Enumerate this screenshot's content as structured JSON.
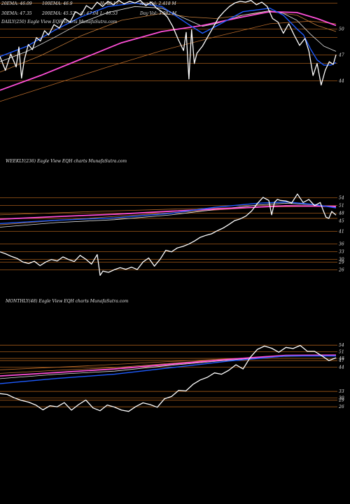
{
  "colors": {
    "background": "#000000",
    "price": "#ffffff",
    "ema20": "#1e5bff",
    "ema30": "#e8e8e8",
    "ema50": "#c47c3a",
    "ema100": "#ff4fd8",
    "ema200": "#b86a2a",
    "level_line": "#c06a1c",
    "text": "#e6e6e6"
  },
  "chart_data": [
    {
      "type": "line",
      "panel": "daily",
      "title": "DAILY(250) Eagle  View  EQH charts MunafaSutra.com",
      "info": {
        "row1": [
          "20EMA: 46.09",
          "100EMA: 46.9",
          "",
          "H: 48.17",
          "Avg Vol: 2.418 M"
        ],
        "row2": [
          "30EMA: 47.35",
          "200EMA: 45.52",
          "C: 47.04",
          "L: 46.53",
          "Day Vol: 3.982 M"
        ]
      },
      "ylim": [
        42,
        54
      ],
      "x": [
        0,
        249
      ],
      "ticks": [
        50,
        47,
        44
      ],
      "levels": [
        53,
        50,
        49,
        47,
        46,
        44
      ],
      "series": [
        {
          "key": "price",
          "x": [
            0,
            4,
            8,
            12,
            14,
            16,
            18,
            21,
            24,
            27,
            30,
            33,
            36,
            40,
            44,
            48,
            52,
            56,
            60,
            64,
            68,
            72,
            76,
            80,
            84,
            88,
            92,
            96,
            100,
            104,
            108,
            112,
            116,
            120,
            124,
            128,
            132,
            136,
            138,
            140,
            142,
            144,
            146,
            148,
            150,
            154,
            158,
            162,
            166,
            170,
            174,
            178,
            182,
            186,
            190,
            194,
            198,
            202,
            206,
            210,
            214,
            218,
            222,
            226,
            229,
            232,
            235,
            238,
            241,
            244,
            247,
            249
          ],
          "y": [
            46.8,
            45.2,
            47.1,
            45.6,
            47.9,
            44.3,
            46.4,
            48.2,
            47.6,
            49.0,
            48.6,
            49.8,
            49.3,
            50.5,
            50.1,
            51.2,
            50.8,
            52.0,
            51.6,
            52.7,
            52.3,
            53.1,
            52.6,
            53.2,
            52.8,
            53.3,
            52.9,
            53.2,
            53.0,
            53.3,
            52.7,
            53.1,
            52.4,
            52.0,
            51.4,
            50.3,
            48.8,
            47.5,
            49.6,
            44.2,
            49.9,
            46.0,
            47.2,
            47.6,
            48.0,
            49.1,
            50.2,
            51.3,
            52.0,
            52.6,
            53.0,
            53.2,
            53.1,
            53.3,
            52.8,
            53.1,
            52.6,
            51.2,
            50.8,
            49.5,
            50.6,
            49.3,
            48.1,
            48.9,
            47.4,
            44.6,
            46.0,
            43.5,
            45.2,
            46.2,
            45.9,
            47.0
          ]
        },
        {
          "key": "ema20",
          "x": [
            0,
            20,
            40,
            60,
            80,
            100,
            120,
            140,
            150,
            160,
            180,
            200,
            210,
            220,
            225,
            230,
            235,
            240,
            245,
            249
          ],
          "y": [
            46.8,
            48.0,
            49.8,
            51.4,
            52.6,
            53.0,
            52.6,
            50.5,
            49.5,
            50.3,
            52.0,
            52.4,
            51.6,
            50.0,
            49.3,
            47.7,
            46.4,
            45.8,
            45.8,
            46.1
          ]
        },
        {
          "key": "ema30",
          "x": [
            0,
            20,
            40,
            60,
            80,
            100,
            120,
            140,
            150,
            160,
            180,
            200,
            210,
            220,
            230,
            240,
            249
          ],
          "y": [
            46.2,
            47.4,
            49.0,
            50.7,
            51.9,
            52.6,
            52.4,
            51.0,
            50.3,
            50.6,
            51.6,
            52.1,
            51.8,
            51.0,
            49.4,
            48.0,
            47.4
          ]
        },
        {
          "key": "ema50",
          "x": [
            0,
            30,
            60,
            90,
            120,
            140,
            160,
            180,
            200,
            220,
            235,
            249
          ],
          "y": [
            45.0,
            46.9,
            49.2,
            51.0,
            51.8,
            51.4,
            51.2,
            51.6,
            52.0,
            51.6,
            50.4,
            49.7
          ]
        },
        {
          "key": "ema100",
          "x": [
            0,
            30,
            60,
            90,
            120,
            150,
            180,
            200,
            220,
            235,
            249
          ],
          "y": [
            42.9,
            44.6,
            46.5,
            48.4,
            49.7,
            50.4,
            51.4,
            52.0,
            51.9,
            51.2,
            50.4
          ]
        },
        {
          "key": "ema200",
          "x": [
            0,
            40,
            80,
            120,
            160,
            200,
            230,
            249
          ],
          "y": [
            41.6,
            43.6,
            45.6,
            47.5,
            49.1,
            50.6,
            50.9,
            50.6
          ]
        }
      ]
    },
    {
      "type": "line",
      "panel": "weekly",
      "title": "WEEKLY(236) Eagle  View  EQH charts MunafaSutra.com",
      "ylim": [
        22,
        58
      ],
      "x": [
        0,
        235
      ],
      "ticks": [
        54,
        51,
        48,
        45,
        41,
        36,
        33,
        30,
        29,
        26
      ],
      "levels": [
        54,
        51,
        48,
        46,
        41,
        36,
        33,
        30,
        29,
        26
      ],
      "series": [
        {
          "key": "price",
          "x": [
            0,
            4,
            8,
            12,
            16,
            20,
            24,
            28,
            32,
            36,
            40,
            44,
            48,
            52,
            56,
            60,
            64,
            68,
            70,
            72,
            74,
            76,
            80,
            84,
            88,
            92,
            96,
            100,
            104,
            108,
            112,
            116,
            120,
            124,
            128,
            132,
            136,
            140,
            144,
            148,
            152,
            156,
            160,
            164,
            168,
            172,
            176,
            180,
            184,
            188,
            190,
            192,
            194,
            196,
            200,
            204,
            208,
            212,
            216,
            220,
            224,
            226,
            228,
            230,
            232,
            235
          ],
          "y": [
            33.0,
            32.2,
            31.2,
            30.4,
            29.0,
            28.4,
            29.3,
            27.6,
            29.0,
            30.0,
            29.4,
            31.0,
            30.0,
            29.2,
            31.6,
            30.1,
            28.2,
            31.9,
            23.8,
            25.5,
            25.2,
            25.0,
            26.0,
            26.8,
            26.2,
            27.0,
            26.1,
            29.0,
            30.6,
            27.4,
            30.1,
            33.6,
            33.0,
            34.5,
            35.1,
            36.0,
            37.2,
            38.6,
            39.4,
            40.0,
            41.2,
            42.2,
            43.6,
            45.1,
            45.8,
            46.9,
            48.9,
            51.8,
            54.2,
            53.0,
            47.4,
            52.3,
            53.4,
            53.0,
            52.8,
            52.0,
            55.5,
            52.2,
            53.4,
            51.0,
            52.2,
            49.2,
            46.5,
            46.0,
            48.7,
            47.3
          ]
        },
        {
          "key": "ema20",
          "x": [
            0,
            40,
            80,
            120,
            150,
            180,
            200,
            220,
            235
          ],
          "y": [
            44.0,
            45.3,
            46.2,
            48.0,
            50.3,
            51.9,
            52.4,
            51.4,
            50.1
          ]
        },
        {
          "key": "ema30",
          "x": [
            0,
            40,
            80,
            120,
            150,
            180,
            200,
            220,
            235
          ],
          "y": [
            42.6,
            44.4,
            45.5,
            47.4,
            49.4,
            51.2,
            51.9,
            51.3,
            50.3
          ]
        },
        {
          "key": "ema50",
          "x": [
            0,
            40,
            80,
            120,
            160,
            200,
            235
          ],
          "y": [
            43.5,
            45.2,
            46.8,
            48.2,
            49.6,
            51.0,
            50.8
          ]
        },
        {
          "key": "ema100",
          "x": [
            0,
            40,
            80,
            120,
            160,
            200,
            235
          ],
          "y": [
            45.7,
            46.7,
            47.6,
            48.8,
            49.9,
            50.9,
            50.7
          ]
        },
        {
          "key": "ema200",
          "x": [
            0,
            60,
            120,
            180,
            235
          ],
          "y": [
            47.4,
            48.6,
            49.6,
            50.4,
            50.8
          ]
        }
      ]
    },
    {
      "type": "line",
      "panel": "monthly",
      "title": "MONTHLY(48) Eagle  View  EQH charts MunafaSutra.com",
      "ylim": [
        20,
        62
      ],
      "x": [
        0,
        47
      ],
      "ticks": [
        54,
        51,
        48,
        47,
        44,
        33,
        30,
        29,
        26
      ],
      "levels": [
        54,
        51,
        48,
        47,
        44,
        33,
        30,
        29,
        26
      ],
      "series": [
        {
          "key": "price",
          "x": [
            0,
            1,
            2,
            3,
            4,
            5,
            6,
            7,
            8,
            9,
            10,
            11,
            12,
            13,
            14,
            15,
            16,
            17,
            18,
            19,
            20,
            21,
            22,
            23,
            24,
            25,
            26,
            27,
            28,
            29,
            30,
            31,
            32,
            33,
            34,
            35,
            36,
            37,
            38,
            39,
            40,
            41,
            42,
            43,
            44,
            45,
            46,
            47
          ],
          "y": [
            32.0,
            31.6,
            30.1,
            28.9,
            28.1,
            26.8,
            24.6,
            26.5,
            26.0,
            27.9,
            24.5,
            27.0,
            29.1,
            25.5,
            24.2,
            26.8,
            25.9,
            24.5,
            23.9,
            26.1,
            27.8,
            27.0,
            25.8,
            29.6,
            30.7,
            33.5,
            33.2,
            36.2,
            38.2,
            39.4,
            41.4,
            40.8,
            42.6,
            45.1,
            43.2,
            48.4,
            52.1,
            53.6,
            52.6,
            50.8,
            53.0,
            52.5,
            53.9,
            51.2,
            51.2,
            49.2,
            47.0,
            48.3
          ]
        },
        {
          "key": "ema20",
          "x": [
            0,
            8,
            16,
            24,
            32,
            40,
            47
          ],
          "y": [
            36.5,
            38.9,
            40.8,
            43.8,
            46.8,
            49.1,
            49.1
          ]
        },
        {
          "key": "ema30",
          "x": [
            0,
            8,
            16,
            24,
            32,
            40,
            47
          ],
          "y": [
            38.8,
            40.8,
            42.2,
            44.9,
            47.2,
            49.0,
            49.2
          ]
        },
        {
          "key": "ema50",
          "x": [
            0,
            8,
            16,
            24,
            32,
            40,
            47
          ],
          "y": [
            41.2,
            42.6,
            43.8,
            45.8,
            47.7,
            49.2,
            49.5
          ]
        },
        {
          "key": "ema100",
          "x": [
            0,
            8,
            16,
            24,
            32,
            40,
            47
          ],
          "y": [
            40.0,
            41.6,
            43.2,
            45.4,
            47.6,
            49.4,
            49.5
          ]
        },
        {
          "key": "ema200",
          "x": [
            0,
            12,
            24,
            36,
            47
          ],
          "y": [
            42.8,
            44.6,
            46.6,
            48.4,
            49.6
          ]
        }
      ]
    }
  ]
}
